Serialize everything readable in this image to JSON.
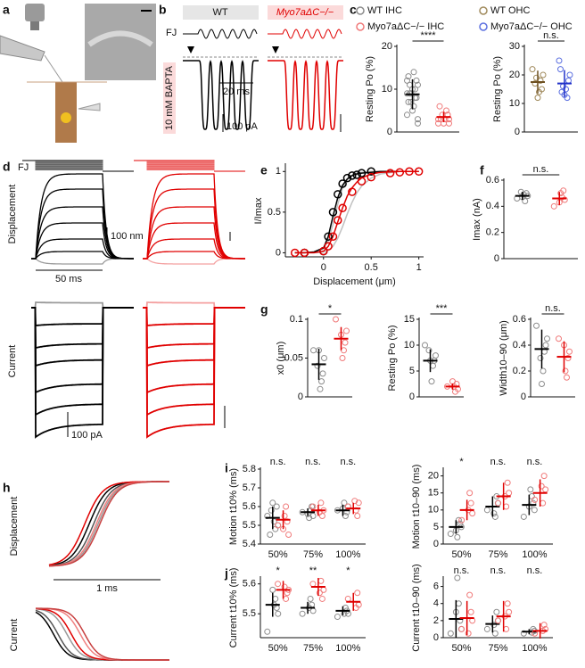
{
  "panel_labels": [
    "a",
    "b",
    "c",
    "d",
    "e",
    "f",
    "g",
    "h",
    "i",
    "j"
  ],
  "panel_b": {
    "wt": "WT",
    "mutant": "Myo7aΔC−/−",
    "stimulus": "FJ",
    "condition": "10 mM BAPTA",
    "time_scale": "20 ms",
    "current_scale": "100 pA"
  },
  "panel_d": {
    "stimulus": "FJ",
    "displacement": "Displacement",
    "displacement_scale": "100 nm",
    "time_scale": "50 ms",
    "current": "Current",
    "current_scale": "100 pA"
  },
  "panel_h": {
    "displacement": "Displacement",
    "time_scale": "1 ms",
    "current": "Current"
  },
  "chart_data": [
    {
      "type": "strip",
      "ylabel": "Resting Po (%)",
      "ylim": [
        0,
        20
      ],
      "yticks": [
        0,
        10,
        20
      ],
      "annotation": "****",
      "series": [
        {
          "name": "WT IHC",
          "color": "#8c8c8c",
          "bar_color": "#000000",
          "values": [
            9,
            11,
            12,
            8,
            6,
            10,
            7,
            9,
            13,
            4,
            2,
            8,
            10,
            14,
            5,
            9,
            11,
            7,
            12,
            3
          ],
          "mean": 8.8,
          "sd": 3.5
        },
        {
          "name": "Myo7aΔC−/− IHC",
          "color": "#f07a7a",
          "bar_color": "#e00000",
          "values": [
            3,
            2,
            4,
            5,
            3,
            2,
            4,
            3,
            6,
            2,
            3,
            4
          ],
          "mean": 3.5,
          "sd": 1.2
        }
      ]
    },
    {
      "type": "strip",
      "ylabel": "Resting Po (%)",
      "ylim": [
        0,
        30
      ],
      "yticks": [
        0,
        10,
        20,
        30
      ],
      "annotation": "n.s.",
      "series": [
        {
          "name": "WT OHC",
          "color": "#a08a5c",
          "bar_color": "#6e5020",
          "values": [
            22,
            20,
            15,
            18,
            14,
            12,
            19,
            17
          ],
          "mean": 17.5,
          "sd": 4
        },
        {
          "name": "Myo7aΔC−/− OHC",
          "color": "#5b6fe0",
          "bar_color": "#2030c8",
          "values": [
            25,
            20,
            18,
            12,
            15,
            13,
            16,
            14,
            22
          ],
          "mean": 17,
          "sd": 4.7
        }
      ]
    },
    {
      "type": "line",
      "ylabel": "I/Imax",
      "xlabel": "Displacement (μm)",
      "xlim": [
        -0.4,
        1.05
      ],
      "xticks": [
        0,
        0.5,
        1
      ],
      "ylim": [
        -0.05,
        1.08
      ],
      "yticks": [
        0,
        0.5,
        1
      ],
      "series": [
        {
          "color": "#c0c0c0",
          "x": [
            -0.3,
            -0.2,
            -0.1,
            0,
            0.05,
            0.1,
            0.15,
            0.2,
            0.25,
            0.3,
            0.35,
            0.4,
            0.5,
            0.6,
            0.8,
            1.0
          ],
          "values": [
            0,
            0,
            0.01,
            0.05,
            0.15,
            0.35,
            0.6,
            0.8,
            0.9,
            0.95,
            0.98,
            0.99,
            1,
            1,
            1,
            1
          ]
        },
        {
          "color": "#c0c0c0",
          "x": [
            -0.3,
            -0.2,
            -0.1,
            0,
            0.05,
            0.1,
            0.15,
            0.2,
            0.25,
            0.3,
            0.35,
            0.4,
            0.5,
            0.6,
            0.8,
            1.0
          ],
          "values": [
            0,
            0,
            0,
            0.01,
            0.03,
            0.08,
            0.18,
            0.32,
            0.48,
            0.62,
            0.74,
            0.82,
            0.92,
            0.97,
            1,
            1
          ]
        },
        {
          "color": "#000000",
          "x": [
            -0.3,
            -0.2,
            -0.1,
            0,
            0.05,
            0.1,
            0.15,
            0.2,
            0.25,
            0.3,
            0.35,
            0.4,
            0.5,
            0.6,
            0.8,
            1.0
          ],
          "values": [
            0,
            0,
            0.01,
            0.06,
            0.2,
            0.45,
            0.68,
            0.83,
            0.91,
            0.95,
            0.97,
            0.98,
            0.99,
            1,
            1,
            1
          ]
        },
        {
          "color": "#e00000",
          "x": [
            -0.3,
            -0.2,
            -0.1,
            0,
            0.05,
            0.1,
            0.15,
            0.2,
            0.25,
            0.3,
            0.35,
            0.4,
            0.5,
            0.6,
            0.8,
            1.0
          ],
          "values": [
            0,
            0,
            0,
            0.02,
            0.08,
            0.2,
            0.38,
            0.55,
            0.7,
            0.8,
            0.87,
            0.92,
            0.97,
            0.99,
            1,
            1
          ]
        },
        {
          "color": "#000000",
          "marker": "circle",
          "x": [
            -0.2,
            0,
            0.05,
            0.1,
            0.15,
            0.2,
            0.25,
            0.3,
            0.35,
            0.4,
            0.5
          ],
          "values": [
            0,
            0.02,
            0.2,
            0.5,
            0.72,
            0.85,
            0.92,
            0.95,
            0.96,
            0.98,
            1
          ]
        },
        {
          "color": "#e00000",
          "marker": "circle",
          "x": [
            -0.3,
            -0.2,
            0,
            0.05,
            0.1,
            0.15,
            0.2,
            0.3,
            0.4,
            0.5,
            0.7,
            0.8,
            0.9,
            1.0
          ],
          "values": [
            0,
            0,
            0.02,
            0.08,
            0.2,
            0.4,
            0.55,
            0.75,
            0.88,
            0.93,
            0.98,
            0.99,
            1,
            1
          ]
        }
      ]
    },
    {
      "type": "strip",
      "ylabel": "Imax (nA)",
      "ylim": [
        0,
        0.6
      ],
      "yticks": [
        0,
        0.2,
        0.4,
        0.6
      ],
      "annotation": "n.s.",
      "series": [
        {
          "color": "#8c8c8c",
          "bar_color": "#000000",
          "values": [
            0.46,
            0.48,
            0.5,
            0.44,
            0.49,
            0.47,
            0.51
          ],
          "mean": 0.48,
          "sd": 0.03
        },
        {
          "color": "#f07a7a",
          "bar_color": "#e00000",
          "values": [
            0.4,
            0.45,
            0.52,
            0.47,
            0.5,
            0.43
          ],
          "mean": 0.46,
          "sd": 0.05
        }
      ]
    },
    {
      "type": "strip",
      "ylabel": "x0 (μm)",
      "ylim": [
        0,
        0.1
      ],
      "yticks": [
        0,
        0.05,
        0.1
      ],
      "annotation": "*",
      "series": [
        {
          "color": "#8c8c8c",
          "bar_color": "#000000",
          "values": [
            0.06,
            0.05,
            0.03,
            0.02,
            0.01,
            0.06,
            0.04
          ],
          "mean": 0.042,
          "sd": 0.02
        },
        {
          "color": "#f07a7a",
          "bar_color": "#e00000",
          "values": [
            0.1,
            0.085,
            0.07,
            0.06,
            0.05,
            0.08
          ],
          "mean": 0.075,
          "sd": 0.015
        }
      ]
    },
    {
      "type": "strip",
      "ylabel": "Resting Po (%)",
      "ylim": [
        0,
        15
      ],
      "yticks": [
        0,
        5,
        10,
        15
      ],
      "annotation": "***",
      "series": [
        {
          "color": "#8c8c8c",
          "bar_color": "#000000",
          "values": [
            10,
            8,
            7,
            6,
            3,
            7,
            9
          ],
          "mean": 7,
          "sd": 2.2
        },
        {
          "color": "#f07a7a",
          "bar_color": "#e00000",
          "values": [
            2,
            1.5,
            2.5,
            1,
            2,
            3
          ],
          "mean": 2,
          "sd": 0.6
        }
      ]
    },
    {
      "type": "strip",
      "ylabel": "Width10–90 (μm)",
      "ylim": [
        0,
        0.6
      ],
      "yticks": [
        0,
        0.2,
        0.4,
        0.6
      ],
      "annotation": "n.s.",
      "series": [
        {
          "color": "#8c8c8c",
          "bar_color": "#000000",
          "values": [
            0.55,
            0.45,
            0.4,
            0.35,
            0.2,
            0.1,
            0.3
          ],
          "mean": 0.37,
          "sd": 0.15
        },
        {
          "color": "#f07a7a",
          "bar_color": "#e00000",
          "values": [
            0.45,
            0.35,
            0.3,
            0.15,
            0.2,
            0.4
          ],
          "mean": 0.31,
          "sd": 0.12
        }
      ]
    },
    {
      "type": "strip",
      "ylabel": "Motion t10% (ms)",
      "categories": [
        "50%",
        "75%",
        "100%"
      ],
      "annotations": [
        "n.s.",
        "n.s.",
        "n.s."
      ],
      "ylim": [
        5.4,
        5.8
      ],
      "yticks": [
        5.4,
        5.5,
        5.6,
        5.7,
        5.8
      ],
      "series": [
        {
          "color": "#8c8c8c",
          "bar_color": "#000000",
          "values": [
            [
              5.55,
              5.5,
              5.6,
              5.48,
              5.52,
              5.62,
              5.58,
              5.45
            ],
            [
              5.57,
              5.55,
              5.6,
              5.58,
              5.54,
              5.56
            ],
            [
              5.58,
              5.6,
              5.57,
              5.55,
              5.62,
              5.59
            ]
          ],
          "mean": [
            5.54,
            5.57,
            5.58
          ],
          "sd": [
            0.06,
            0.02,
            0.03
          ]
        },
        {
          "color": "#f07a7a",
          "bar_color": "#e00000",
          "values": [
            [
              5.5,
              5.45,
              5.52,
              5.6,
              5.55,
              5.48
            ],
            [
              5.6,
              5.58,
              5.55,
              5.62,
              5.57
            ],
            [
              5.6,
              5.62,
              5.55,
              5.58,
              5.63
            ]
          ],
          "mean": [
            5.53,
            5.58,
            5.59
          ],
          "sd": [
            0.05,
            0.03,
            0.03
          ]
        }
      ]
    },
    {
      "type": "strip",
      "ylabel": "Motion t10–90 (ms)",
      "categories": [
        "50%",
        "75%",
        "100%"
      ],
      "annotations": [
        "*",
        "n.s.",
        "n.s."
      ],
      "ylim": [
        0,
        22
      ],
      "yticks": [
        0,
        5,
        10,
        15,
        20
      ],
      "series": [
        {
          "color": "#8c8c8c",
          "bar_color": "#000000",
          "values": [
            [
              3,
              5,
              6,
              7,
              2,
              4
            ],
            [
              10,
              12,
              14,
              8,
              9
            ],
            [
              8,
              10,
              12,
              14,
              16,
              11
            ]
          ],
          "mean": [
            5,
            11,
            11.5
          ],
          "sd": [
            2,
            3,
            3
          ]
        },
        {
          "color": "#f07a7a",
          "bar_color": "#e00000",
          "values": [
            [
              7,
              9,
              12,
              15,
              10
            ],
            [
              12,
              15,
              18,
              11,
              14
            ],
            [
              13,
              16,
              20,
              12,
              17
            ]
          ],
          "mean": [
            10,
            14,
            15
          ],
          "sd": [
            3,
            4,
            4
          ]
        }
      ]
    },
    {
      "type": "strip",
      "ylabel": "Current t10% (ms)",
      "categories": [
        "50%",
        "75%",
        "100%"
      ],
      "annotations": [
        "*",
        "**",
        "*"
      ],
      "ylim": [
        5.42,
        5.62
      ],
      "yticks": [
        5.5,
        5.6
      ],
      "series": [
        {
          "color": "#8c8c8c",
          "bar_color": "#000000",
          "values": [
            [
              5.44,
              5.5,
              5.52,
              5.55,
              5.53,
              5.58
            ],
            [
              5.5,
              5.51,
              5.53,
              5.55,
              5.52
            ],
            [
              5.49,
              5.5,
              5.51,
              5.52,
              5.5
            ]
          ],
          "mean": [
            5.53,
            5.52,
            5.51
          ],
          "sd": [
            0.04,
            0.02,
            0.015
          ]
        },
        {
          "color": "#f07a7a",
          "bar_color": "#e00000",
          "values": [
            [
              5.6,
              5.58,
              5.57,
              5.55,
              5.59
            ],
            [
              5.6,
              5.58,
              5.55,
              5.61,
              5.57
            ],
            [
              5.55,
              5.53,
              5.57,
              5.52
            ]
          ],
          "mean": [
            5.58,
            5.59,
            5.54
          ],
          "sd": [
            0.03,
            0.03,
            0.03
          ]
        }
      ]
    },
    {
      "type": "strip",
      "ylabel": "Current t10–90 (ms)",
      "categories": [
        "50%",
        "75%",
        "100%"
      ],
      "annotations": [
        "n.s.",
        "n.s.",
        "n.s."
      ],
      "ylim": [
        0,
        7
      ],
      "yticks": [
        0,
        2,
        4,
        6
      ],
      "series": [
        {
          "color": "#8c8c8c",
          "bar_color": "#000000",
          "values": [
            [
              0.5,
              1,
              2,
              4,
              7,
              3
            ],
            [
              1,
              2,
              3,
              0.5,
              1.5
            ],
            [
              0.5,
              0.8,
              1,
              0.6
            ]
          ],
          "mean": [
            2.2,
            1.6,
            0.7
          ],
          "sd": [
            2.2,
            1,
            0.3
          ]
        },
        {
          "color": "#f07a7a",
          "bar_color": "#e00000",
          "values": [
            [
              1,
              2,
              3,
              5,
              0.5
            ],
            [
              2,
              3,
              4,
              1,
              2.5
            ],
            [
              0.5,
              1,
              1.5,
              0.8
            ]
          ],
          "mean": [
            2.3,
            2.5,
            0.8
          ],
          "sd": [
            2,
            1.8,
            0.9
          ]
        }
      ]
    }
  ]
}
